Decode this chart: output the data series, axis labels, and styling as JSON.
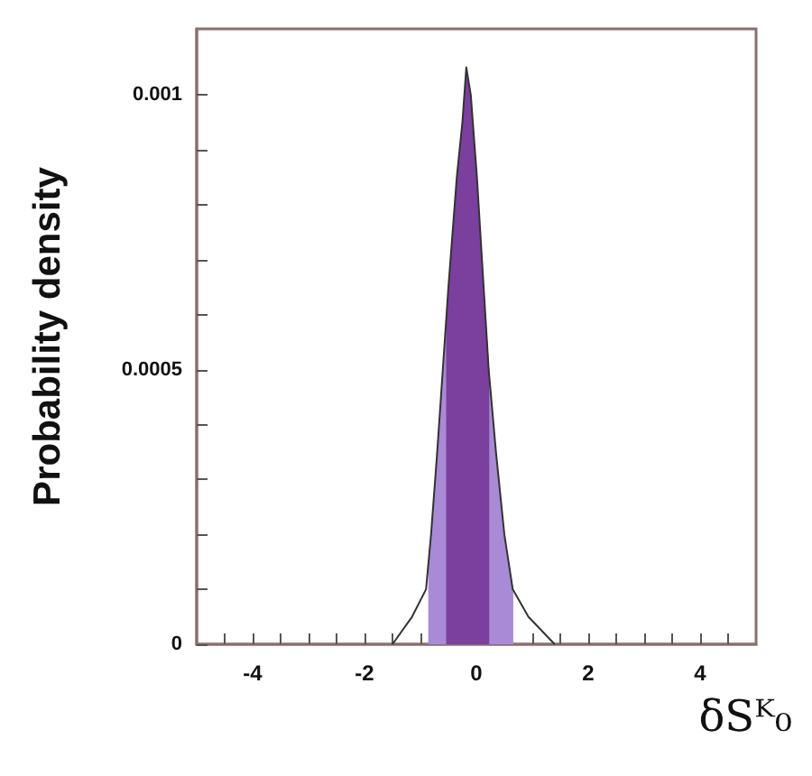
{
  "chart_data": {
    "type": "line",
    "ylabel": "Probability density",
    "xlabel": "δSᴷ₀",
    "xlim": [
      -5,
      5
    ],
    "xticks": [
      {
        "value": -4.5,
        "label": null
      },
      -4,
      {
        "value": -3.5,
        "label": null
      },
      {
        "value": -3,
        "label": null
      },
      {
        "value": -2.5,
        "label": null
      },
      -2,
      {
        "value": -1.5,
        "label": null
      },
      {
        "value": -1,
        "label": null
      },
      {
        "value": -0.5,
        "label": null
      },
      0,
      {
        "value": 0.5,
        "label": null
      },
      {
        "value": 1,
        "label": null
      },
      {
        "value": 1.5,
        "label": null
      },
      2,
      {
        "value": 2.5,
        "label": null
      },
      {
        "value": 3,
        "label": null
      },
      {
        "value": 3.5,
        "label": null
      },
      4,
      {
        "value": 4.5,
        "label": null
      }
    ],
    "ylim": [
      0,
      0.00112
    ],
    "yticks": [
      0,
      {
        "value": 0.0001,
        "label": null
      },
      {
        "value": 0.0002,
        "label": null
      },
      {
        "value": 0.0003,
        "label": null
      },
      {
        "value": 0.0004,
        "label": null
      },
      0.0005,
      {
        "value": 0.0006,
        "label": null
      },
      {
        "value": 0.0007,
        "label": null
      },
      {
        "value": 0.0008,
        "label": null
      },
      {
        "value": 0.0009,
        "label": null
      },
      0.001
    ],
    "marker": "none",
    "series": [
      {
        "type": "area",
        "color": "#a98ad6",
        "x": [
          -0.86,
          -0.81,
          -0.7,
          -0.6,
          -0.5,
          -0.35,
          -0.25,
          -0.18,
          -0.1,
          0.01,
          0.1,
          0.22,
          0.35,
          0.5,
          0.66
        ],
        "values": [
          0.00015,
          0.0002,
          0.00035,
          0.0005,
          0.00065,
          0.00085,
          0.00095,
          0.00105,
          0.001,
          0.00085,
          0.0007,
          0.0005,
          0.00035,
          0.0002,
          0.0001
        ]
      },
      {
        "type": "area",
        "color": "#7b3f9e",
        "x": [
          -0.54,
          -0.5,
          -0.35,
          -0.25,
          -0.18,
          -0.1,
          0.01,
          0.1,
          0.23
        ],
        "values": [
          0.0006,
          0.00065,
          0.00085,
          0.00095,
          0.00105,
          0.001,
          0.00085,
          0.0007,
          0.0005
        ]
      },
      {
        "type": "line",
        "color": "#333333",
        "x": [
          -1.5,
          -1.15,
          -0.9,
          -0.81,
          -0.7,
          -0.6,
          -0.5,
          -0.35,
          -0.25,
          -0.18,
          -0.1,
          0.01,
          0.1,
          0.22,
          0.35,
          0.5,
          0.65,
          0.93,
          1.4
        ],
        "values": [
          0,
          5e-05,
          0.0001,
          0.0002,
          0.00035,
          0.0005,
          0.00065,
          0.00085,
          0.00095,
          0.00105,
          0.001,
          0.00085,
          0.0007,
          0.0005,
          0.00035,
          0.0002,
          0.0001,
          5e-05,
          0
        ]
      }
    ]
  }
}
